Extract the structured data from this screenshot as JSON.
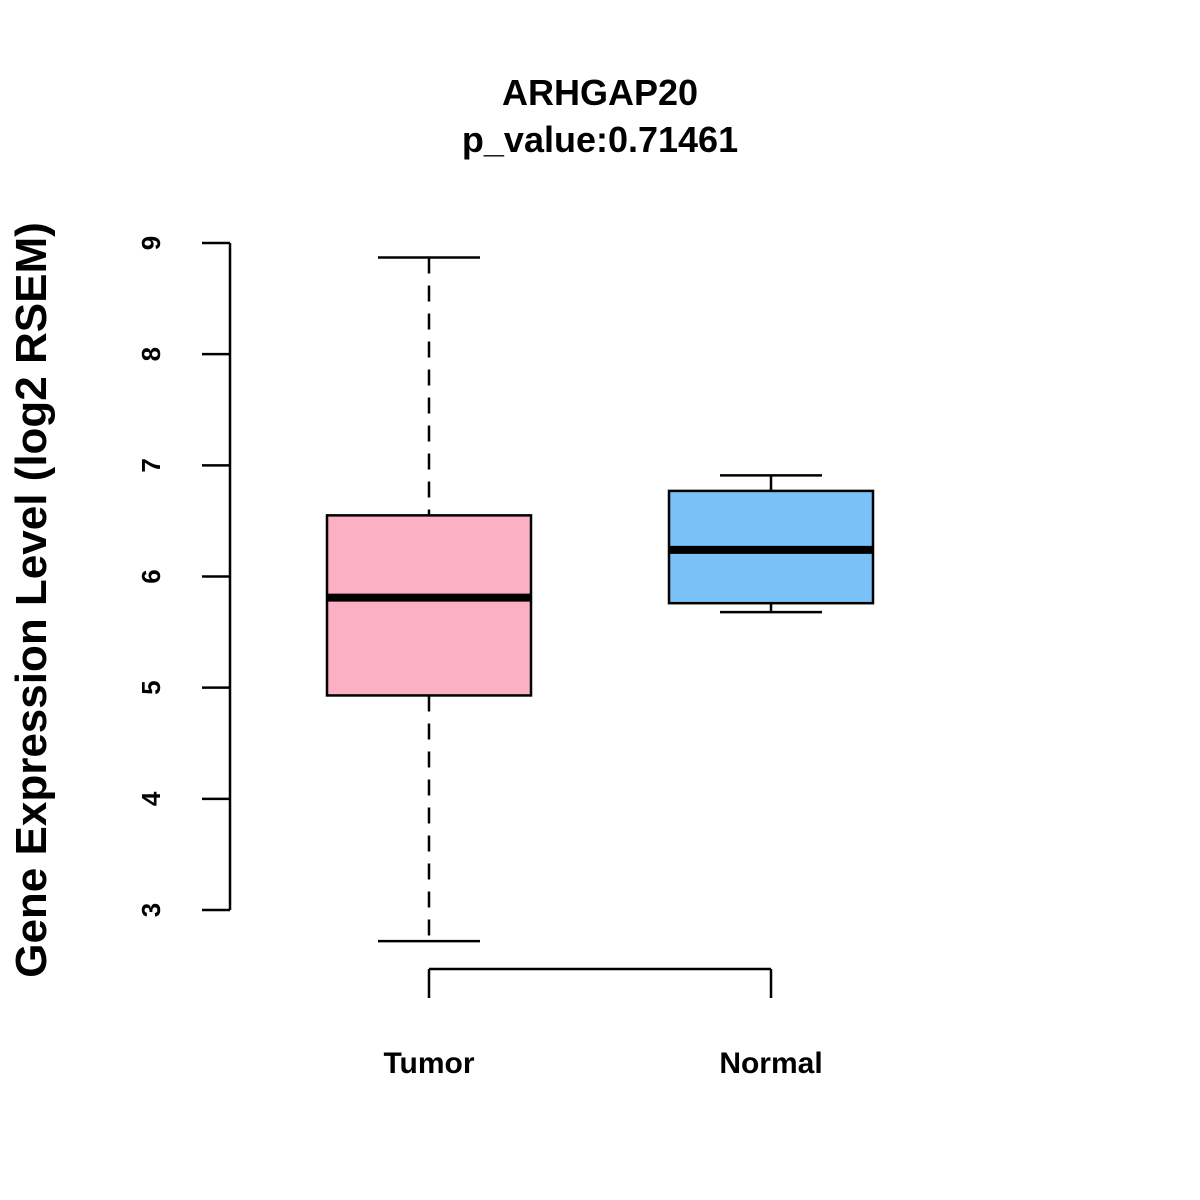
{
  "chart_data": {
    "type": "boxplot",
    "title": "ARHGAP20",
    "subtitle": "p_value:0.71461",
    "xlabel": "",
    "ylabel": "Gene Expression Level (log2 RSEM)",
    "ylim": [
      3,
      9
    ],
    "yticks": [
      3,
      4,
      5,
      6,
      7,
      8,
      9
    ],
    "grid": false,
    "categories": [
      "Tumor",
      "Normal"
    ],
    "series": [
      {
        "name": "Tumor",
        "whisker_low": 2.72,
        "q1": 4.93,
        "median": 5.81,
        "q3": 6.55,
        "whisker_high": 8.87,
        "color": "#FBB1C3"
      },
      {
        "name": "Normal",
        "whisker_low": 5.68,
        "q1": 5.76,
        "median": 6.24,
        "q3": 6.77,
        "whisker_high": 6.91,
        "color": "#79C1F7"
      }
    ]
  }
}
